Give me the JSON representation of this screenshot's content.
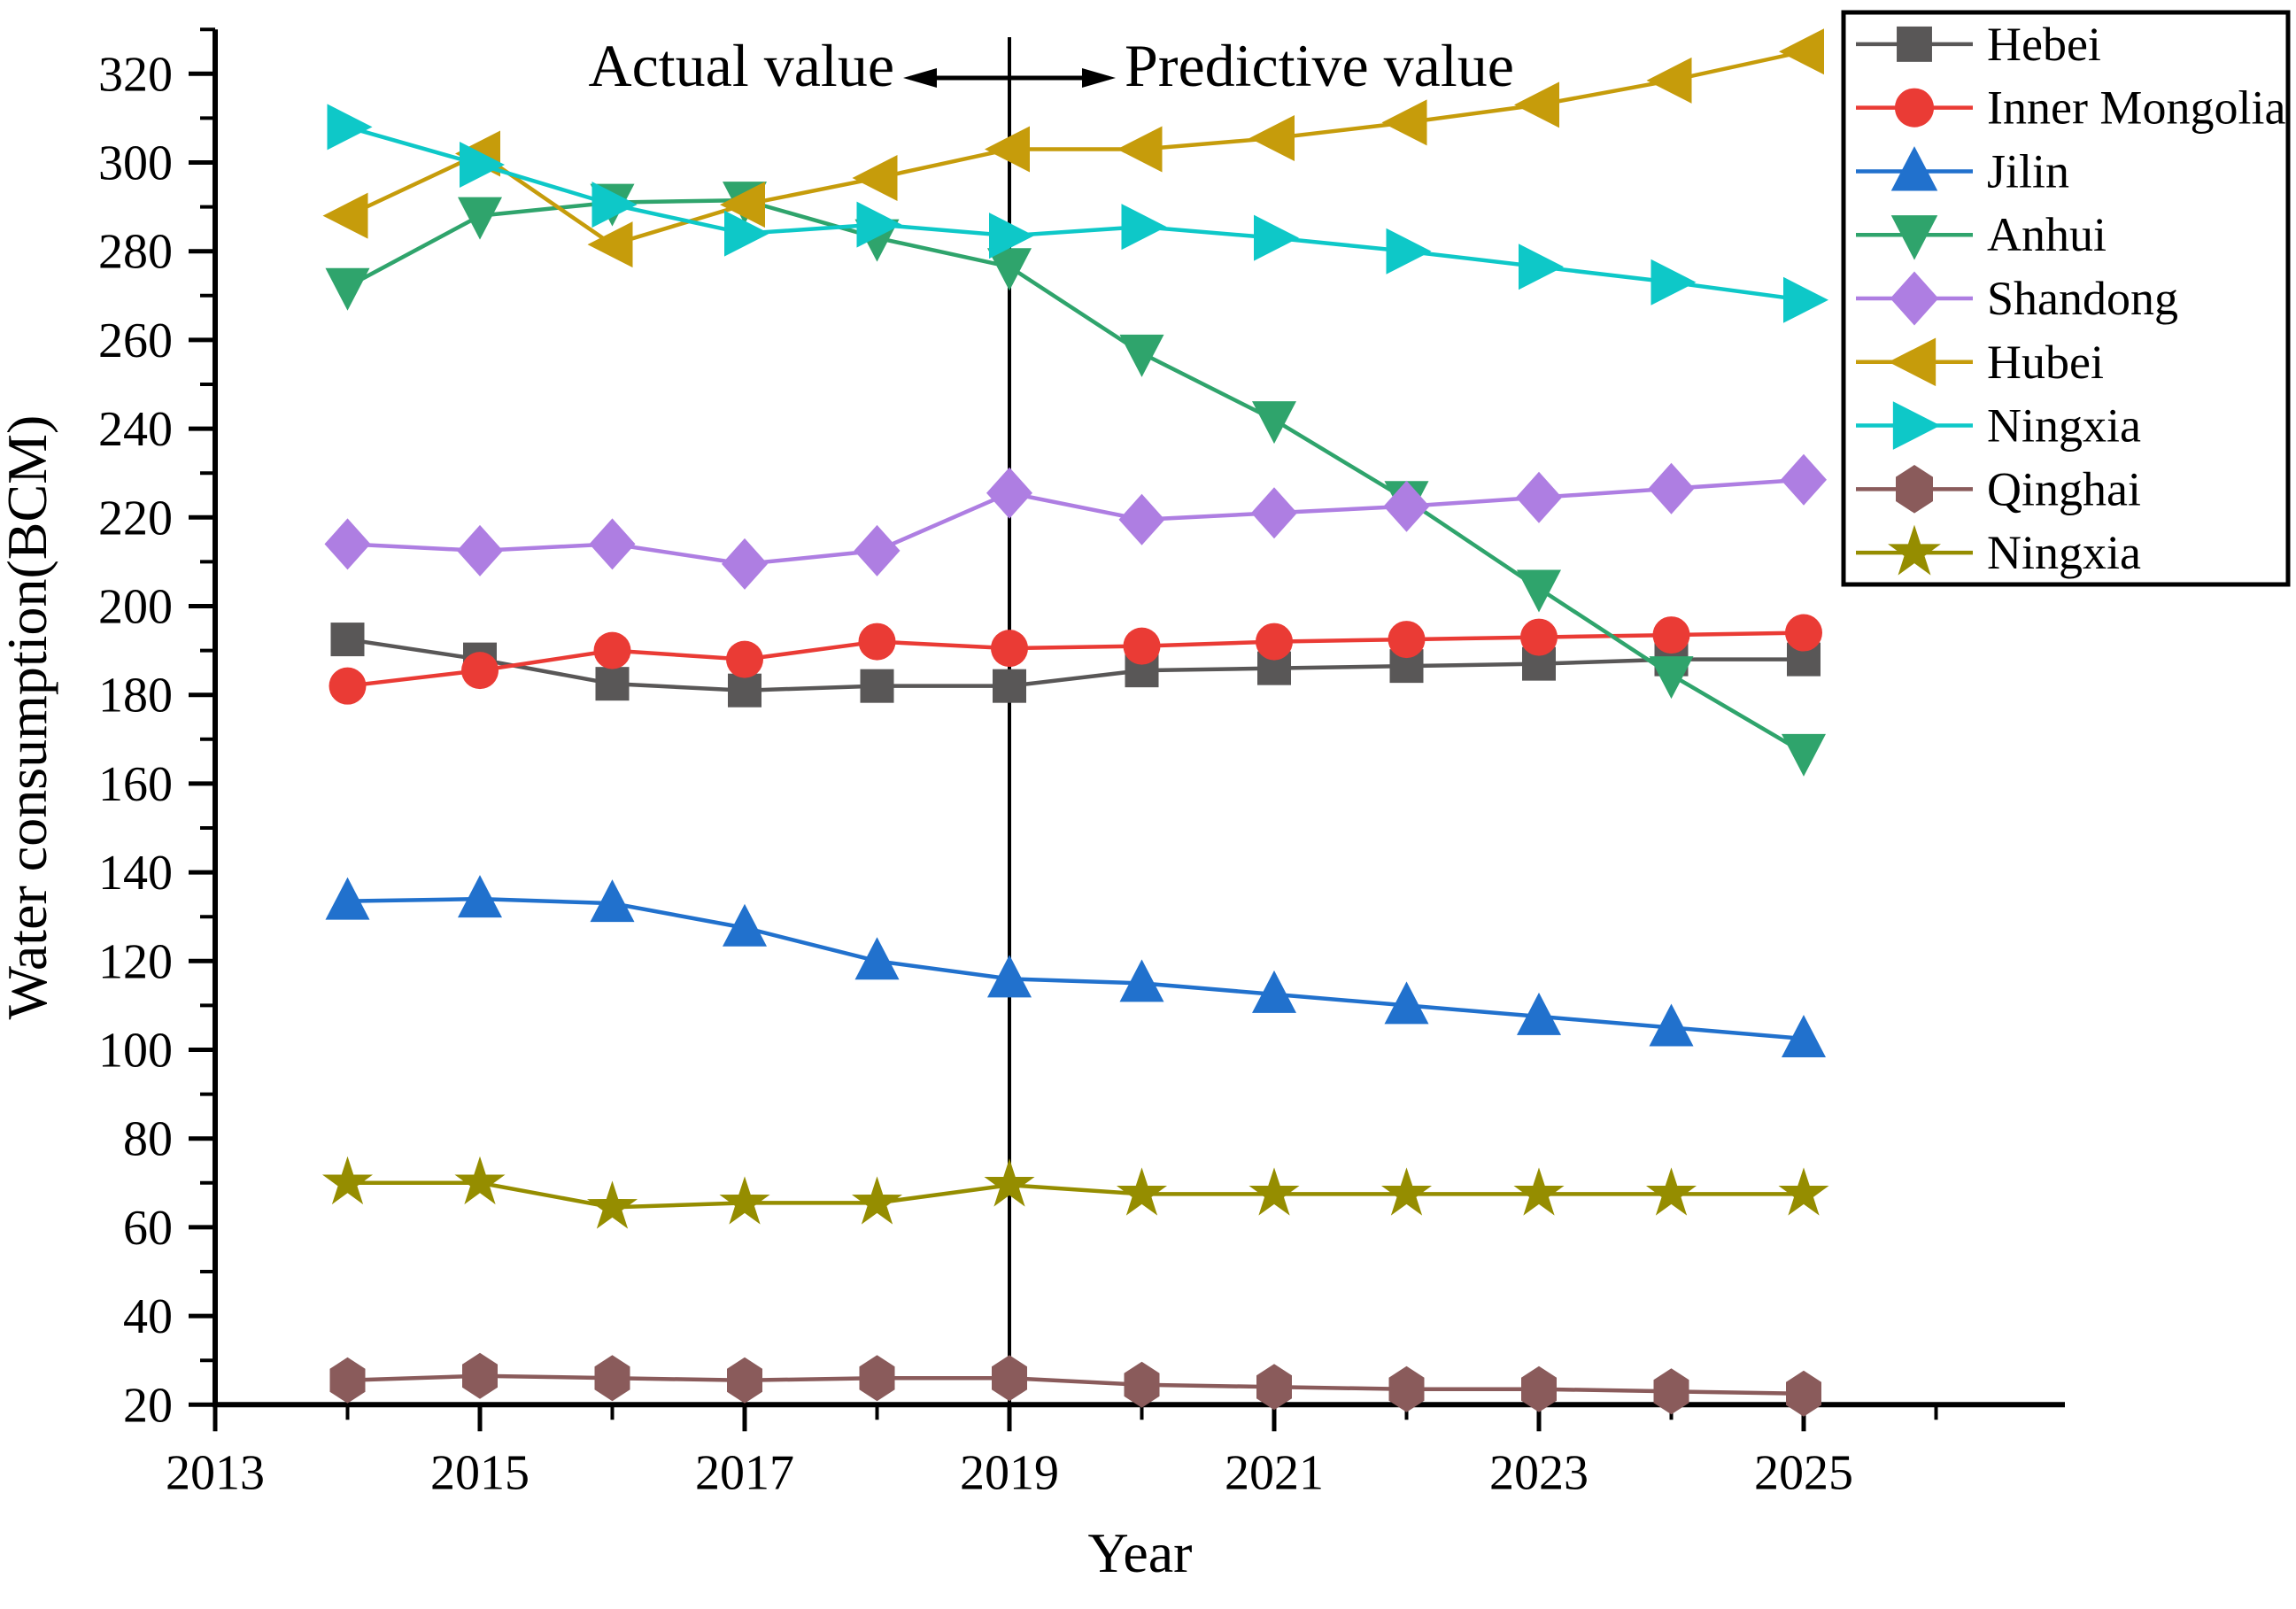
{
  "figure": {
    "background": "#ffffff",
    "axis_color": "#000000",
    "y_axis_title": "Water consumption(BCM)",
    "x_axis_title": "Year",
    "annotation": {
      "left_label": "Actual value",
      "right_label": "Predictive value",
      "divider_year": 2019
    }
  },
  "chart_data": {
    "type": "line",
    "title": "",
    "xlabel": "Year",
    "ylabel": "Water consumption(BCM)",
    "x": [
      2014,
      2015,
      2016,
      2017,
      2018,
      2019,
      2020,
      2021,
      2022,
      2023,
      2024,
      2025
    ],
    "xlim": [
      2013,
      2026.97
    ],
    "ylim": [
      20,
      330
    ],
    "x_major_ticks": [
      2013,
      2015,
      2017,
      2019,
      2021,
      2023,
      2025
    ],
    "x_minor_ticks": [
      2014,
      2016,
      2018,
      2020,
      2022,
      2024,
      2026
    ],
    "y_major_tick_start": 20,
    "y_major_tick_end": 320,
    "y_major_tick_step": 20,
    "y_minor_tick_step": 10,
    "grid": false,
    "legend_position": "top-right",
    "divider_x": 2019,
    "series": [
      {
        "name": "Hebei",
        "color": "#595757",
        "marker": "square",
        "values": [
          192.5,
          188,
          182.5,
          181,
          182,
          182,
          185.5,
          186,
          186.5,
          187,
          188,
          188
        ]
      },
      {
        "name": "Inner Mongolia",
        "color": "#ea3b35",
        "marker": "circle",
        "values": [
          182,
          185.5,
          190,
          188,
          192,
          190.5,
          191,
          192,
          192.5,
          193,
          193.5,
          194
        ]
      },
      {
        "name": "Jilin",
        "color": "#2171cd",
        "marker": "triangle-up",
        "values": [
          133.5,
          134,
          133,
          127.5,
          120,
          116,
          115,
          112.5,
          110,
          107.5,
          105,
          102.5
        ]
      },
      {
        "name": "Anhui",
        "color": "#2fa46c",
        "marker": "triangle-down",
        "values": [
          272,
          288,
          291,
          291.5,
          283,
          276.5,
          257,
          242,
          224,
          204,
          184.5,
          167
        ]
      },
      {
        "name": "Shandong",
        "color": "#ae7ee2",
        "marker": "diamond",
        "values": [
          214,
          212.5,
          214,
          209.5,
          212.5,
          225.5,
          219.5,
          221,
          222.5,
          224.5,
          226.5,
          228.5
        ]
      },
      {
        "name": "Hubei",
        "color": "#c69c0b",
        "marker": "triangle-left",
        "values": [
          288,
          302,
          281.5,
          290.5,
          296.5,
          303,
          303,
          305.5,
          309,
          313,
          318.5,
          325
        ]
      },
      {
        "name": "Ningxia",
        "color": "#0ec8c8",
        "marker": "triangle-right",
        "values": [
          308,
          299.5,
          290.5,
          284,
          286,
          283.5,
          285.5,
          283,
          280,
          276.5,
          273,
          269
        ]
      },
      {
        "name": "Qinghai",
        "color": "#8a5b5b",
        "marker": "hexagon",
        "values": [
          25.5,
          26.5,
          26,
          25.5,
          26,
          26,
          24.5,
          24,
          23.5,
          23.5,
          23,
          22.5
        ]
      },
      {
        "name": "Ningxia",
        "color": "#958d00",
        "marker": "star",
        "values": [
          70,
          70,
          64.5,
          65.5,
          65.5,
          69.5,
          67.5,
          67.5,
          67.5,
          67.5,
          67.5,
          67.5
        ]
      }
    ]
  }
}
